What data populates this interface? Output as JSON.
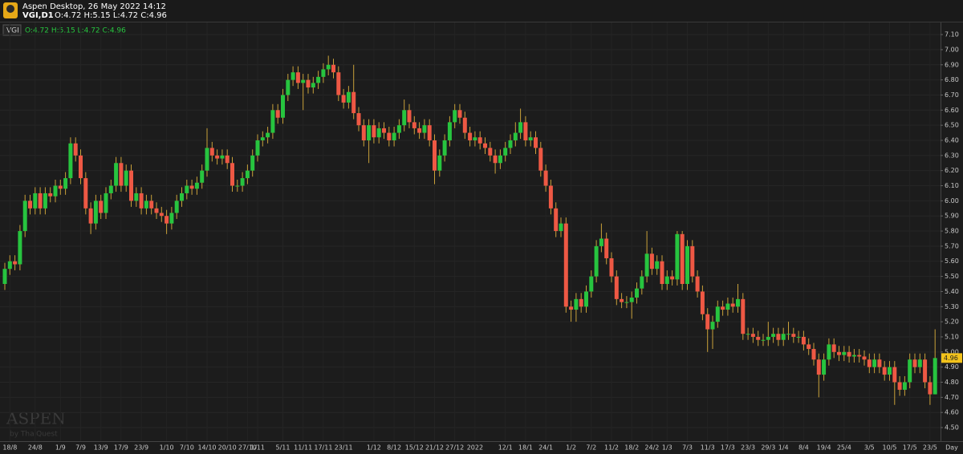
{
  "header": {
    "app_title": "Aspen Desktop, 26 May 2022 14:12",
    "symbol": "VGI,D1",
    "ohlc": "O:4.72 H:5.15 L:4.72 C:4.96"
  },
  "legend": {
    "symbol": "VGI",
    "ohlc": "O:4.72 H:5.15 L:4.72 C:4.96"
  },
  "watermark": {
    "brand": "ASPEN",
    "by": "by ThaiQuest"
  },
  "chart_data": {
    "type": "candlestick",
    "up_color": "#27c43f",
    "down_color": "#ee5844",
    "wick_color": "#c9a13a",
    "ylim": [
      4.41,
      7.18
    ],
    "yticks": [
      {
        "value": 4.5,
        "label": "4.50"
      },
      {
        "value": 4.6,
        "label": "4.60"
      },
      {
        "value": 4.7,
        "label": "4.70"
      },
      {
        "value": 4.8,
        "label": "4.80"
      },
      {
        "value": 4.9,
        "label": "4.90"
      },
      {
        "value": 5.0,
        "label": "5.00"
      },
      {
        "value": 5.1,
        "label": "5.10"
      },
      {
        "value": 5.2,
        "label": "5.20"
      },
      {
        "value": 5.3,
        "label": "5.30"
      },
      {
        "value": 5.4,
        "label": "5.40"
      },
      {
        "value": 5.5,
        "label": "5.50"
      },
      {
        "value": 5.6,
        "label": "5.60"
      },
      {
        "value": 5.7,
        "label": "5.70"
      },
      {
        "value": 5.8,
        "label": "5.80"
      },
      {
        "value": 5.9,
        "label": "5.90"
      },
      {
        "value": 6.0,
        "label": "6.00"
      },
      {
        "value": 6.1,
        "label": "6.10"
      },
      {
        "value": 6.2,
        "label": "6.20"
      },
      {
        "value": 6.3,
        "label": "6.30"
      },
      {
        "value": 6.4,
        "label": "6.40"
      },
      {
        "value": 6.5,
        "label": "6.50"
      },
      {
        "value": 6.6,
        "label": "6.60"
      },
      {
        "value": 6.7,
        "label": "6.70"
      },
      {
        "value": 6.8,
        "label": "6.80"
      },
      {
        "value": 6.9,
        "label": "6.90"
      },
      {
        "value": 7.0,
        "label": "7.00"
      },
      {
        "value": 7.1,
        "label": "7.10"
      }
    ],
    "grid": true,
    "x_unit_label": "Day",
    "last_price": {
      "value": 4.96,
      "label": "4.96"
    },
    "categories": [
      null,
      "18/8",
      null,
      null,
      null,
      null,
      "24/8",
      null,
      null,
      null,
      null,
      "1/9",
      null,
      null,
      null,
      "7/9",
      null,
      null,
      null,
      "13/9",
      null,
      null,
      null,
      "17/9",
      null,
      null,
      null,
      "23/9",
      null,
      null,
      null,
      null,
      "1/10",
      null,
      null,
      null,
      "7/10",
      null,
      null,
      null,
      "14/10",
      null,
      null,
      null,
      "20/10",
      null,
      null,
      null,
      "27/10",
      null,
      "1/11",
      null,
      null,
      null,
      null,
      "5/11",
      null,
      null,
      null,
      "11/11",
      null,
      null,
      null,
      "17/11",
      null,
      null,
      null,
      "23/11",
      null,
      null,
      null,
      null,
      null,
      "1/12",
      null,
      null,
      null,
      "8/12",
      null,
      null,
      null,
      "15/12",
      null,
      null,
      null,
      "21/12",
      null,
      null,
      null,
      "27/12",
      null,
      null,
      null,
      "2022",
      null,
      null,
      null,
      null,
      null,
      "12/1",
      null,
      null,
      null,
      "18/1",
      null,
      null,
      null,
      "24/1",
      null,
      null,
      null,
      null,
      "1/2",
      null,
      null,
      null,
      "7/2",
      null,
      null,
      null,
      "11/2",
      null,
      null,
      null,
      "18/2",
      null,
      null,
      null,
      "24/2",
      null,
      null,
      "1/3",
      null,
      null,
      null,
      "7/3",
      null,
      null,
      null,
      "11/3",
      null,
      null,
      null,
      "17/3",
      null,
      null,
      null,
      "23/3",
      null,
      null,
      null,
      "29/3",
      null,
      null,
      "1/4",
      null,
      null,
      null,
      "8/4",
      null,
      null,
      null,
      "19/4",
      null,
      null,
      null,
      "25/4",
      null,
      null,
      null,
      null,
      "3/5",
      null,
      null,
      null,
      "10/5",
      null,
      null,
      null,
      "17/5",
      null,
      null,
      null,
      "23/5",
      null
    ],
    "open": [
      5.45,
      5.55,
      5.6,
      5.58,
      5.8,
      6.0,
      5.95,
      6.05,
      5.95,
      6.05,
      6.03,
      6.1,
      6.08,
      6.15,
      6.38,
      6.3,
      6.15,
      5.95,
      5.85,
      6.0,
      5.92,
      6.05,
      6.1,
      6.25,
      6.1,
      6.2,
      6.0,
      6.05,
      5.95,
      6.0,
      5.95,
      5.92,
      5.9,
      5.85,
      5.92,
      6.0,
      6.05,
      6.1,
      6.08,
      6.12,
      6.2,
      6.35,
      6.3,
      6.28,
      6.3,
      6.25,
      6.1,
      6.1,
      6.15,
      6.2,
      6.3,
      6.4,
      6.42,
      6.45,
      6.6,
      6.55,
      6.7,
      6.8,
      6.85,
      6.78,
      6.8,
      6.75,
      6.78,
      6.82,
      6.87,
      6.9,
      6.85,
      6.7,
      6.65,
      6.72,
      6.58,
      6.5,
      6.4,
      6.5,
      6.42,
      6.48,
      6.45,
      6.4,
      6.45,
      6.5,
      6.6,
      6.52,
      6.48,
      6.45,
      6.5,
      6.4,
      6.2,
      6.3,
      6.4,
      6.52,
      6.6,
      6.55,
      6.45,
      6.4,
      6.42,
      6.38,
      6.35,
      6.3,
      6.25,
      6.3,
      6.35,
      6.4,
      6.45,
      6.52,
      6.4,
      6.42,
      6.35,
      6.2,
      6.1,
      5.95,
      5.8,
      5.85,
      5.3,
      5.28,
      5.35,
      5.3,
      5.4,
      5.5,
      5.7,
      5.75,
      5.62,
      5.5,
      5.35,
      5.33,
      5.33,
      5.36,
      5.42,
      5.5,
      5.65,
      5.55,
      5.6,
      5.45,
      5.5,
      5.48,
      5.78,
      5.45,
      5.7,
      5.5,
      5.4,
      5.25,
      5.15,
      5.2,
      5.3,
      5.28,
      5.32,
      5.3,
      5.35,
      5.12,
      5.12,
      5.1,
      5.08,
      5.08,
      5.1,
      5.12,
      5.08,
      5.12,
      5.12,
      5.1,
      5.1,
      5.05,
      5.02,
      4.95,
      4.85,
      4.95,
      5.05,
      5.0,
      4.98,
      5.0,
      4.97,
      4.98,
      4.97,
      4.95,
      4.9,
      4.95,
      4.9,
      4.85,
      4.9,
      4.8,
      4.75,
      4.8,
      4.95,
      4.9,
      4.95,
      4.8,
      4.72
    ],
    "high": [
      5.59,
      5.64,
      5.64,
      5.84,
      6.04,
      6.04,
      6.09,
      6.09,
      6.09,
      6.09,
      6.14,
      6.14,
      6.19,
      6.42,
      6.42,
      6.34,
      6.19,
      5.99,
      6.04,
      6.04,
      6.09,
      6.14,
      6.29,
      6.29,
      6.24,
      6.24,
      6.09,
      6.09,
      6.04,
      6.04,
      5.99,
      5.96,
      5.94,
      5.96,
      6.04,
      6.09,
      6.14,
      6.14,
      6.16,
      6.24,
      6.48,
      6.39,
      6.34,
      6.34,
      6.34,
      6.29,
      6.14,
      6.19,
      6.24,
      6.34,
      6.44,
      6.46,
      6.49,
      6.64,
      6.64,
      6.74,
      6.84,
      6.89,
      6.89,
      6.84,
      6.84,
      6.82,
      6.86,
      6.91,
      6.96,
      6.94,
      6.89,
      6.74,
      6.76,
      6.9,
      6.62,
      6.54,
      6.54,
      6.54,
      6.52,
      6.52,
      6.49,
      6.49,
      6.54,
      6.67,
      6.64,
      6.56,
      6.52,
      6.54,
      6.54,
      6.44,
      6.34,
      6.44,
      6.56,
      6.64,
      6.64,
      6.59,
      6.49,
      6.46,
      6.46,
      6.42,
      6.39,
      6.34,
      6.34,
      6.39,
      6.44,
      6.52,
      6.61,
      6.56,
      6.46,
      6.46,
      6.39,
      6.24,
      6.14,
      5.99,
      5.89,
      5.89,
      5.34,
      5.39,
      5.39,
      5.44,
      5.54,
      5.74,
      5.85,
      5.79,
      5.66,
      5.54,
      5.39,
      5.37,
      5.4,
      5.46,
      5.54,
      5.8,
      5.69,
      5.64,
      5.64,
      5.54,
      5.54,
      5.8,
      5.8,
      5.74,
      5.74,
      5.54,
      5.44,
      5.29,
      5.24,
      5.34,
      5.34,
      5.36,
      5.36,
      5.45,
      5.39,
      5.16,
      5.16,
      5.14,
      5.12,
      5.2,
      5.16,
      5.16,
      5.16,
      5.2,
      5.16,
      5.14,
      5.14,
      5.09,
      5.06,
      4.99,
      4.99,
      5.09,
      5.09,
      5.04,
      5.04,
      5.04,
      5.02,
      5.02,
      5.01,
      4.99,
      4.99,
      4.99,
      4.94,
      4.94,
      4.94,
      4.84,
      4.84,
      4.99,
      4.99,
      4.99,
      4.99,
      4.84,
      5.15
    ],
    "low": [
      5.41,
      5.51,
      5.54,
      5.54,
      5.76,
      5.91,
      5.91,
      5.91,
      5.91,
      5.99,
      5.99,
      6.04,
      6.04,
      6.11,
      6.26,
      6.11,
      5.91,
      5.78,
      5.81,
      5.88,
      5.88,
      6.01,
      6.06,
      6.06,
      6.06,
      5.96,
      5.96,
      5.91,
      5.91,
      5.91,
      5.88,
      5.86,
      5.78,
      5.81,
      5.88,
      5.96,
      6.01,
      6.04,
      6.04,
      6.08,
      6.16,
      6.26,
      6.24,
      6.24,
      6.21,
      6.06,
      6.06,
      6.06,
      6.11,
      6.16,
      6.26,
      6.36,
      6.38,
      6.41,
      6.51,
      6.51,
      6.66,
      6.76,
      6.74,
      6.6,
      6.71,
      6.71,
      6.74,
      6.78,
      6.83,
      6.81,
      6.66,
      6.61,
      6.61,
      6.54,
      6.46,
      6.36,
      6.25,
      6.38,
      6.38,
      6.41,
      6.36,
      6.36,
      6.41,
      6.46,
      6.48,
      6.44,
      6.41,
      6.41,
      6.36,
      6.11,
      6.16,
      6.26,
      6.36,
      6.48,
      6.51,
      6.41,
      6.36,
      6.36,
      6.34,
      6.31,
      6.26,
      6.18,
      6.21,
      6.26,
      6.31,
      6.36,
      6.41,
      6.36,
      6.36,
      6.31,
      6.16,
      6.06,
      5.91,
      5.76,
      5.76,
      5.26,
      5.2,
      5.2,
      5.26,
      5.26,
      5.36,
      5.46,
      5.66,
      5.58,
      5.46,
      5.31,
      5.29,
      5.29,
      5.22,
      5.32,
      5.38,
      5.46,
      5.51,
      5.51,
      5.41,
      5.41,
      5.44,
      5.44,
      5.41,
      5.41,
      5.46,
      5.36,
      5.21,
      5.0,
      5.02,
      5.16,
      5.24,
      5.24,
      5.26,
      5.26,
      5.08,
      5.08,
      5.06,
      5.04,
      5.04,
      5.04,
      5.06,
      5.04,
      5.04,
      5.08,
      5.06,
      5.06,
      5.01,
      4.98,
      4.91,
      4.7,
      4.81,
      4.91,
      4.96,
      4.94,
      4.94,
      4.93,
      4.93,
      4.93,
      4.91,
      4.86,
      4.86,
      4.86,
      4.81,
      4.81,
      4.65,
      4.71,
      4.71,
      4.76,
      4.86,
      4.86,
      4.76,
      4.65,
      4.72
    ],
    "close": [
      5.55,
      5.6,
      5.58,
      5.8,
      6.0,
      5.95,
      6.05,
      5.95,
      6.05,
      6.03,
      6.1,
      6.08,
      6.15,
      6.38,
      6.3,
      6.15,
      5.95,
      5.85,
      6.0,
      5.92,
      6.05,
      6.1,
      6.25,
      6.1,
      6.2,
      6.0,
      6.05,
      5.95,
      6.0,
      5.95,
      5.92,
      5.9,
      5.85,
      5.92,
      6.0,
      6.05,
      6.1,
      6.08,
      6.12,
      6.2,
      6.35,
      6.3,
      6.28,
      6.3,
      6.25,
      6.1,
      6.1,
      6.15,
      6.2,
      6.3,
      6.4,
      6.42,
      6.45,
      6.6,
      6.55,
      6.7,
      6.8,
      6.85,
      6.78,
      6.8,
      6.75,
      6.78,
      6.82,
      6.87,
      6.9,
      6.85,
      6.7,
      6.65,
      6.72,
      6.58,
      6.5,
      6.4,
      6.5,
      6.42,
      6.48,
      6.45,
      6.4,
      6.45,
      6.5,
      6.6,
      6.52,
      6.48,
      6.45,
      6.5,
      6.4,
      6.2,
      6.3,
      6.4,
      6.52,
      6.6,
      6.55,
      6.45,
      6.4,
      6.42,
      6.38,
      6.35,
      6.3,
      6.25,
      6.3,
      6.35,
      6.4,
      6.45,
      6.52,
      6.4,
      6.42,
      6.35,
      6.2,
      6.1,
      5.95,
      5.8,
      5.85,
      5.3,
      5.28,
      5.35,
      5.3,
      5.4,
      5.5,
      5.7,
      5.75,
      5.62,
      5.5,
      5.35,
      5.33,
      5.33,
      5.36,
      5.42,
      5.5,
      5.65,
      5.55,
      5.6,
      5.45,
      5.5,
      5.48,
      5.78,
      5.45,
      5.7,
      5.5,
      5.4,
      5.25,
      5.15,
      5.2,
      5.3,
      5.28,
      5.32,
      5.3,
      5.35,
      5.12,
      5.12,
      5.1,
      5.08,
      5.08,
      5.1,
      5.12,
      5.08,
      5.12,
      5.12,
      5.1,
      5.1,
      5.05,
      5.02,
      4.95,
      4.85,
      4.95,
      5.05,
      5.0,
      4.98,
      5.0,
      4.97,
      4.98,
      4.97,
      4.95,
      4.9,
      4.95,
      4.9,
      4.85,
      4.9,
      4.8,
      4.75,
      4.8,
      4.95,
      4.9,
      4.95,
      4.8,
      4.72,
      4.96
    ]
  }
}
